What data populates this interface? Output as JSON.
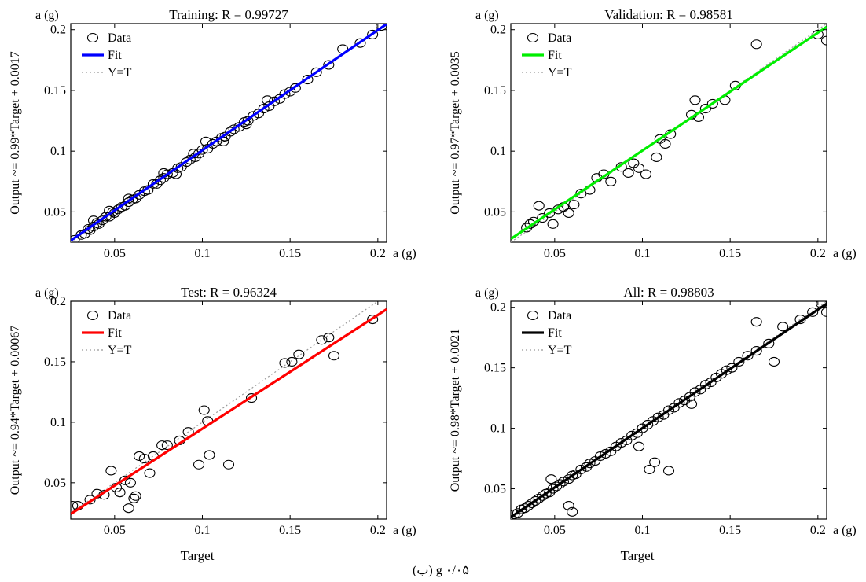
{
  "chart_data": [
    {
      "type": "scatter",
      "title": "Training: R = 0.99727",
      "xlabel": "",
      "ylabel": "Output ~= 0.99*Target + 0.0017",
      "x_unit": "a (g)",
      "y_unit": "a (g)",
      "xlim": [
        0.025,
        0.205
      ],
      "ylim": [
        0.025,
        0.205
      ],
      "x_ticks": [
        "0.05",
        "0.1",
        "0.15",
        "0.2"
      ],
      "y_ticks": [
        "0.05",
        "0.1",
        "0.15",
        "0.2"
      ],
      "legend": [
        "Data",
        "Fit",
        "Y=T"
      ],
      "legend_position": "top-left",
      "fit": {
        "slope": 0.99,
        "intercept": 0.0017,
        "color": "#0000ff"
      },
      "series": [
        {
          "name": "Data",
          "x": [
            0.027,
            0.031,
            0.033,
            0.035,
            0.036,
            0.038,
            0.04,
            0.041,
            0.043,
            0.045,
            0.047,
            0.049,
            0.05,
            0.052,
            0.054,
            0.056,
            0.058,
            0.06,
            0.062,
            0.064,
            0.067,
            0.069,
            0.072,
            0.074,
            0.076,
            0.078,
            0.08,
            0.083,
            0.086,
            0.088,
            0.091,
            0.093,
            0.096,
            0.098,
            0.1,
            0.103,
            0.106,
            0.108,
            0.111,
            0.113,
            0.116,
            0.118,
            0.121,
            0.124,
            0.126,
            0.129,
            0.132,
            0.135,
            0.138,
            0.141,
            0.144,
            0.147,
            0.15,
            0.153,
            0.16,
            0.165,
            0.172,
            0.18,
            0.19,
            0.197,
            0.202,
            0.038,
            0.047,
            0.058,
            0.078,
            0.085,
            0.095,
            0.102,
            0.112,
            0.125,
            0.137
          ],
          "y": [
            0.027,
            0.031,
            0.032,
            0.036,
            0.035,
            0.038,
            0.041,
            0.04,
            0.043,
            0.046,
            0.046,
            0.05,
            0.049,
            0.052,
            0.054,
            0.055,
            0.058,
            0.06,
            0.061,
            0.064,
            0.067,
            0.068,
            0.073,
            0.073,
            0.076,
            0.078,
            0.081,
            0.082,
            0.086,
            0.087,
            0.091,
            0.093,
            0.095,
            0.098,
            0.101,
            0.102,
            0.106,
            0.108,
            0.111,
            0.112,
            0.116,
            0.118,
            0.12,
            0.124,
            0.125,
            0.129,
            0.131,
            0.135,
            0.137,
            0.141,
            0.143,
            0.147,
            0.149,
            0.152,
            0.159,
            0.165,
            0.171,
            0.184,
            0.189,
            0.196,
            0.203,
            0.043,
            0.051,
            0.061,
            0.082,
            0.081,
            0.098,
            0.108,
            0.108,
            0.122,
            0.142
          ]
        }
      ]
    },
    {
      "type": "scatter",
      "title": "Validation: R = 0.98581",
      "xlabel": "",
      "ylabel": "Output ~= 0.97*Target + 0.0035",
      "x_unit": "a (g)",
      "y_unit": "a (g)",
      "xlim": [
        0.025,
        0.205
      ],
      "ylim": [
        0.025,
        0.205
      ],
      "x_ticks": [
        "0.05",
        "0.1",
        "0.15",
        "0.2"
      ],
      "y_ticks": [
        "0.05",
        "0.1",
        "0.15",
        "0.2"
      ],
      "legend": [
        "Data",
        "Fit",
        "Y=T"
      ],
      "legend_position": "top-left",
      "fit": {
        "slope": 0.97,
        "intercept": 0.0035,
        "color": "#00ee00"
      },
      "series": [
        {
          "name": "Data",
          "x": [
            0.034,
            0.036,
            0.038,
            0.041,
            0.043,
            0.047,
            0.049,
            0.052,
            0.055,
            0.058,
            0.061,
            0.065,
            0.07,
            0.074,
            0.078,
            0.082,
            0.088,
            0.092,
            0.095,
            0.098,
            0.102,
            0.108,
            0.11,
            0.113,
            0.116,
            0.128,
            0.13,
            0.132,
            0.136,
            0.14,
            0.147,
            0.153,
            0.165,
            0.2,
            0.205
          ],
          "y": [
            0.037,
            0.04,
            0.042,
            0.055,
            0.045,
            0.049,
            0.04,
            0.052,
            0.054,
            0.049,
            0.056,
            0.065,
            0.068,
            0.078,
            0.081,
            0.075,
            0.087,
            0.082,
            0.09,
            0.086,
            0.081,
            0.095,
            0.11,
            0.106,
            0.114,
            0.13,
            0.142,
            0.128,
            0.135,
            0.139,
            0.142,
            0.154,
            0.188,
            0.196,
            0.191
          ]
        }
      ]
    },
    {
      "type": "scatter",
      "title": "Test: R = 0.96324",
      "xlabel": "Target",
      "ylabel": "Output ~= 0.94*Target + 0.00067",
      "x_unit": "a (g)",
      "y_unit": "a (g)",
      "xlim": [
        0.025,
        0.205
      ],
      "ylim": [
        0.02,
        0.2
      ],
      "x_ticks": [
        "0.05",
        "0.1",
        "0.15",
        "0.2"
      ],
      "y_ticks": [
        "0.05",
        "0.1",
        "0.15",
        "0.2"
      ],
      "legend": [
        "Data",
        "Fit",
        "Y=T"
      ],
      "legend_position": "top-left",
      "fit": {
        "slope": 0.94,
        "intercept": 0.00067,
        "color": "#ff0000"
      },
      "series": [
        {
          "name": "Data",
          "x": [
            0.026,
            0.029,
            0.036,
            0.04,
            0.044,
            0.048,
            0.051,
            0.053,
            0.056,
            0.058,
            0.059,
            0.061,
            0.062,
            0.064,
            0.067,
            0.07,
            0.072,
            0.077,
            0.08,
            0.087,
            0.092,
            0.098,
            0.101,
            0.103,
            0.104,
            0.115,
            0.128,
            0.147,
            0.151,
            0.155,
            0.168,
            0.172,
            0.175,
            0.197
          ],
          "y": [
            0.031,
            0.031,
            0.036,
            0.041,
            0.04,
            0.06,
            0.046,
            0.042,
            0.052,
            0.029,
            0.05,
            0.037,
            0.039,
            0.072,
            0.07,
            0.058,
            0.072,
            0.081,
            0.081,
            0.085,
            0.092,
            0.065,
            0.11,
            0.101,
            0.073,
            0.065,
            0.12,
            0.149,
            0.15,
            0.156,
            0.168,
            0.17,
            0.155,
            0.185
          ]
        }
      ]
    },
    {
      "type": "scatter",
      "title": "All: R = 0.98803",
      "xlabel": "Target",
      "ylabel": "Output ~= 0.98*Target + 0.0021",
      "x_unit": "a (g)",
      "y_unit": "a (g)",
      "xlim": [
        0.025,
        0.205
      ],
      "ylim": [
        0.025,
        0.205
      ],
      "x_ticks": [
        "0.05",
        "0.1",
        "0.15",
        "0.2"
      ],
      "y_ticks": [
        "0.05",
        "0.1",
        "0.15",
        "0.2"
      ],
      "legend": [
        "Data",
        "Fit",
        "Y=T"
      ],
      "legend_position": "top-left",
      "fit": {
        "slope": 0.98,
        "intercept": 0.0021,
        "color": "#000000"
      },
      "series": [
        {
          "name": "Data",
          "x": [
            0.027,
            0.029,
            0.031,
            0.033,
            0.035,
            0.037,
            0.039,
            0.041,
            0.043,
            0.045,
            0.047,
            0.049,
            0.051,
            0.053,
            0.055,
            0.058,
            0.06,
            0.062,
            0.065,
            0.068,
            0.07,
            0.073,
            0.076,
            0.079,
            0.082,
            0.085,
            0.088,
            0.091,
            0.094,
            0.097,
            0.1,
            0.103,
            0.106,
            0.109,
            0.112,
            0.115,
            0.118,
            0.121,
            0.124,
            0.127,
            0.13,
            0.133,
            0.136,
            0.139,
            0.142,
            0.145,
            0.148,
            0.151,
            0.155,
            0.16,
            0.165,
            0.172,
            0.18,
            0.19,
            0.197,
            0.202,
            0.205,
            0.048,
            0.058,
            0.06,
            0.098,
            0.104,
            0.107,
            0.115,
            0.128,
            0.165,
            0.175
          ],
          "y": [
            0.029,
            0.03,
            0.033,
            0.034,
            0.036,
            0.038,
            0.04,
            0.042,
            0.044,
            0.046,
            0.047,
            0.05,
            0.052,
            0.054,
            0.056,
            0.058,
            0.061,
            0.062,
            0.066,
            0.068,
            0.071,
            0.073,
            0.077,
            0.079,
            0.081,
            0.085,
            0.088,
            0.09,
            0.094,
            0.096,
            0.1,
            0.103,
            0.106,
            0.109,
            0.111,
            0.115,
            0.117,
            0.121,
            0.123,
            0.126,
            0.13,
            0.132,
            0.136,
            0.138,
            0.142,
            0.145,
            0.148,
            0.15,
            0.155,
            0.16,
            0.164,
            0.17,
            0.184,
            0.19,
            0.196,
            0.203,
            0.196,
            0.058,
            0.036,
            0.031,
            0.085,
            0.066,
            0.072,
            0.065,
            0.12,
            0.188,
            0.155
          ]
        }
      ]
    }
  ],
  "caption": "(ب) g ۰/۰۵"
}
